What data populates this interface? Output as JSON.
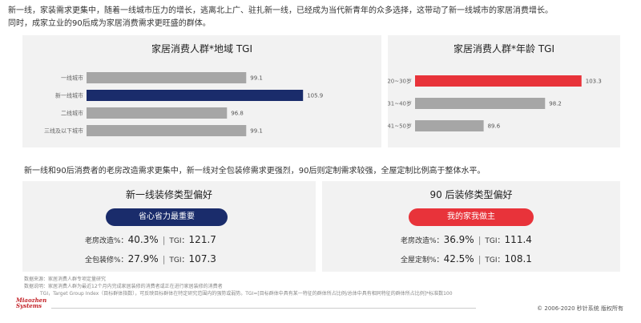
{
  "intro": {
    "line1": "新一线，家装需求更集中，随着一线城市压力的增长，逃离北上广、驻扎新一线，已经成为当代新青年的众多选择，这带动了新一线城市的家居消费增长。",
    "line2": "同时，成家立业的90后成为家居消费需求更旺盛的群体。"
  },
  "chart_data": [
    {
      "type": "bar",
      "orientation": "horizontal",
      "title": "家居消费人群*地域 TGI",
      "categories": [
        "一线城市",
        "新一线城市",
        "二线城市",
        "三线及以下城市"
      ],
      "values": [
        99.1,
        105.9,
        96.8,
        99.1
      ],
      "value_labels": [
        "99.1",
        "105.9",
        "96.8",
        "99.1"
      ],
      "highlight_index": 1,
      "xlim": [
        80,
        110
      ],
      "colors": {
        "default": "#a6a6a6",
        "highlight": "#1a2c6b"
      },
      "grid": false
    },
    {
      "type": "bar",
      "orientation": "horizontal",
      "title": "家居消费人群*年龄 TGI",
      "categories": [
        "20~30岁",
        "31~40岁",
        "41~50岁"
      ],
      "values": [
        103.3,
        98.2,
        89.6
      ],
      "value_labels": [
        "103.3",
        "98.2",
        "89.6"
      ],
      "highlight_index": 0,
      "xlim": [
        80,
        104
      ],
      "colors": {
        "default": "#a6a6a6",
        "highlight": "#e8333a"
      },
      "grid": false
    }
  ],
  "mid_text": "新一线和90后消费者的老房改造需求更集中，新一线对全包装修需求更强烈，90后则定制需求较强，全屋定制比例高于整体水平。",
  "prefs": [
    {
      "title": "新一线装修类型偏好",
      "pill": "省心省力最重要",
      "stats": [
        {
          "label": "老房改造%：",
          "pct": "40.3%",
          "tgi_label": "TGI：",
          "tgi": "121.7"
        },
        {
          "label": "全包装修%：",
          "pct": "27.9%",
          "tgi_label": "TGI：",
          "tgi": "107.3"
        }
      ]
    },
    {
      "title": "90 后装修类型偏好",
      "pill": "我的家我做主",
      "stats": [
        {
          "label": "老房改造%：",
          "pct": "36.9%",
          "tgi_label": "TGI：",
          "tgi": "111.4"
        },
        {
          "label": "全屋定制%：",
          "pct": "42.5%",
          "tgi_label": "TGI：",
          "tgi": "108.1"
        }
      ]
    }
  ],
  "notes": {
    "line1": "数据来源：家居消费人群专项定量研究",
    "line2": "数据说明：家居消费人群为最近12个月内完成家居装修的消费者或正在进行家居装修的消费者",
    "line3": "TGI，Target Group Index（目标群体指数），可反映目标群体在特定研究范围内的强势或弱势。TGI=[目标群体中具有某一特征的群体所占比例/总体中具有相同特征的群体所占比例]*标准数100"
  },
  "footer": {
    "logo_line1": "Miaozhen",
    "logo_line2": "Systems",
    "copyright": "© 2006-2020 秒针系统 版权所有"
  }
}
